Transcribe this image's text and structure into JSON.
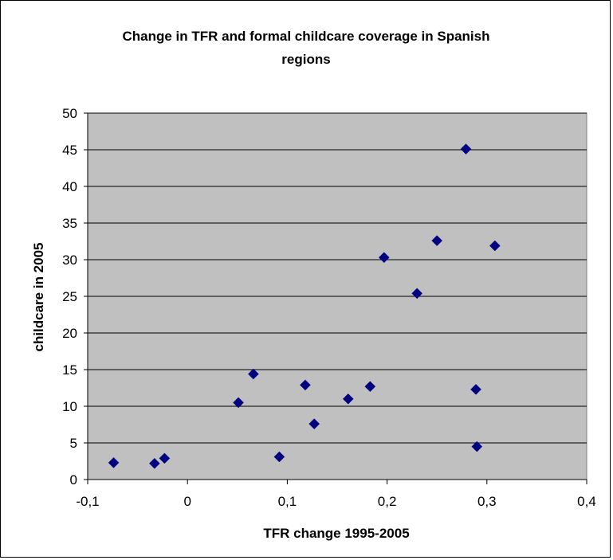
{
  "chart_data": {
    "type": "scatter",
    "title": "Change in TFR and formal childcare coverage in Spanish regions",
    "title_lines": [
      "Change in TFR and formal childcare coverage in Spanish",
      "regions"
    ],
    "xlabel": "TFR change 1995-2005",
    "ylabel": "childcare in 2005",
    "xlim": [
      -0.1,
      0.4
    ],
    "ylim": [
      0,
      50
    ],
    "xticks": [
      -0.1,
      0,
      0.1,
      0.2,
      0.3,
      0.4
    ],
    "xtick_labels": [
      "-0,1",
      "0",
      "0,1",
      "0,2",
      "0,3",
      "0,4"
    ],
    "yticks": [
      0,
      5,
      10,
      15,
      20,
      25,
      30,
      35,
      40,
      45,
      50
    ],
    "ytick_labels": [
      "0",
      "5",
      "10",
      "15",
      "20",
      "25",
      "30",
      "35",
      "40",
      "45",
      "50"
    ],
    "grid": "horizontal",
    "legend": "none",
    "plot_background": "#c0c0c0",
    "marker_color": "#000080",
    "marker": "diamond",
    "points": [
      {
        "x": -0.074,
        "y": 2.3
      },
      {
        "x": -0.033,
        "y": 2.2
      },
      {
        "x": -0.023,
        "y": 2.9
      },
      {
        "x": 0.051,
        "y": 10.5
      },
      {
        "x": 0.066,
        "y": 14.4
      },
      {
        "x": 0.092,
        "y": 3.1
      },
      {
        "x": 0.118,
        "y": 12.9
      },
      {
        "x": 0.127,
        "y": 7.6
      },
      {
        "x": 0.161,
        "y": 11.0
      },
      {
        "x": 0.183,
        "y": 12.7
      },
      {
        "x": 0.197,
        "y": 30.3
      },
      {
        "x": 0.23,
        "y": 25.4
      },
      {
        "x": 0.25,
        "y": 32.6
      },
      {
        "x": 0.279,
        "y": 45.1
      },
      {
        "x": 0.289,
        "y": 12.3
      },
      {
        "x": 0.29,
        "y": 4.5
      },
      {
        "x": 0.308,
        "y": 31.9
      }
    ]
  }
}
